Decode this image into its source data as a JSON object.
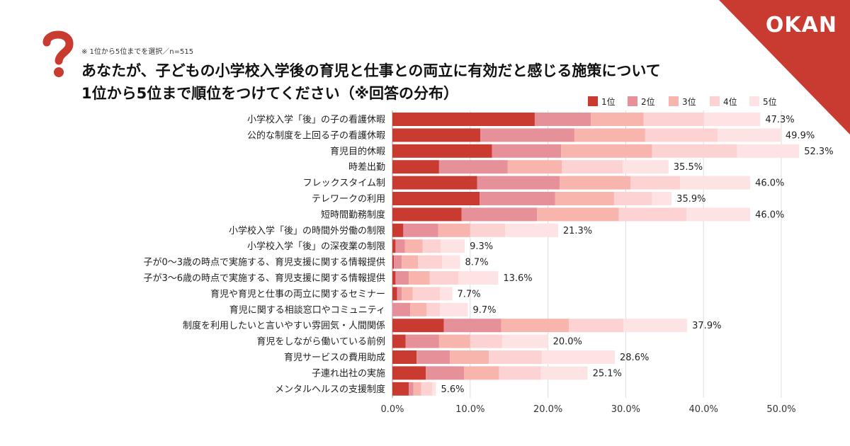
{
  "brand": {
    "logo_text": "OKAN",
    "accent": "#c93a30"
  },
  "header": {
    "note": "※ 1位から5位までを選択／n=515",
    "title_line1": "あなたが、子どもの小学校入学後の育児と仕事との両立に有効だと感じる施策について",
    "title_line2": "1位から5位まで順位をつけてください（※回答の分布）",
    "icon": "question-mark-icon"
  },
  "chart_data": {
    "type": "bar",
    "orientation": "horizontal",
    "stacked": true,
    "title": "あなたが、子どもの小学校入学後の育児と仕事との両立に有効だと感じる施策について 1位から5位まで順位をつけてください（※回答の分布）",
    "categories": [
      "小学校入学「後」の子の看護休暇",
      "公的な制度を上回る子の看護休暇",
      "育児目的休暇",
      "時差出勤",
      "フレックスタイム制",
      "テレワークの利用",
      "短時間勤務制度",
      "小学校入学「後」の時間外労働の制限",
      "小学校入学「後」の深夜業の制限",
      "子が0～3歳の時点で実施する、育児支援に関する情報提供",
      "子が3～6歳の時点で実施する、育児支援に関する情報提供",
      "育児や育児と仕事の両立に関するセミナー",
      "育児に関する相談窓口やコミュニティ",
      "制度を利用したいと言いやすい雰囲気・人間関係",
      "育児をしながら働いている前例",
      "育児サービスの費用助成",
      "子連れ出社の実施",
      "メンタルヘルスの支援制度"
    ],
    "series": [
      {
        "name": "1位",
        "color": "#c93a30",
        "values": [
          18.3,
          11.3,
          12.8,
          6.0,
          10.9,
          11.2,
          8.9,
          1.4,
          0.4,
          0.2,
          0.4,
          0.6,
          0.0,
          6.6,
          1.7,
          3.1,
          4.3,
          2.1
        ]
      },
      {
        "name": "2位",
        "color": "#e6909a",
        "values": [
          7.2,
          12.1,
          8.9,
          8.8,
          10.6,
          9.7,
          9.7,
          4.5,
          1.2,
          1.0,
          1.7,
          0.6,
          2.3,
          7.4,
          4.3,
          4.3,
          4.9,
          0.6
        ]
      },
      {
        "name": "3位",
        "color": "#f8b5ad",
        "values": [
          6.8,
          9.1,
          11.7,
          7.0,
          9.1,
          7.6,
          10.5,
          4.1,
          2.3,
          2.1,
          2.7,
          1.4,
          2.1,
          8.7,
          4.0,
          5.0,
          4.5,
          1.0
        ]
      },
      {
        "name": "4位",
        "color": "#fcd2d2",
        "values": [
          7.8,
          9.3,
          10.9,
          7.8,
          6.4,
          4.9,
          8.7,
          4.5,
          2.3,
          3.1,
          3.7,
          3.5,
          1.7,
          7.0,
          4.1,
          6.8,
          5.4,
          1.4
        ]
      },
      {
        "name": "5位",
        "color": "#fde3e3",
        "values": [
          7.2,
          8.1,
          8.0,
          5.9,
          9.0,
          2.5,
          8.2,
          6.8,
          3.1,
          2.3,
          5.1,
          1.6,
          3.6,
          8.2,
          5.9,
          9.4,
          6.0,
          0.5
        ]
      }
    ],
    "totals": [
      47.3,
      49.9,
      52.3,
      35.5,
      46.0,
      35.9,
      46.0,
      21.3,
      9.3,
      8.7,
      13.6,
      7.7,
      9.7,
      37.9,
      20.0,
      28.6,
      25.1,
      5.6
    ],
    "total_labels": [
      "47.3%",
      "49.9%",
      "52.3%",
      "35.5%",
      "46.0%",
      "35.9%",
      "46.0%",
      "21.3%",
      "9.3%",
      "8.7%",
      "13.6%",
      "7.7%",
      "9.7%",
      "37.9%",
      "20.0%",
      "28.6%",
      "25.1%",
      "5.6%"
    ],
    "x_ticks": [
      0,
      10,
      20,
      30,
      40,
      50
    ],
    "x_tick_labels": [
      "0.0%",
      "10.0%",
      "20.0%",
      "30.0%",
      "40.0%",
      "50.0%"
    ],
    "xlim": [
      0,
      50
    ],
    "xlabel": "",
    "ylabel": "",
    "grid": true,
    "legend_position": "top-right"
  }
}
